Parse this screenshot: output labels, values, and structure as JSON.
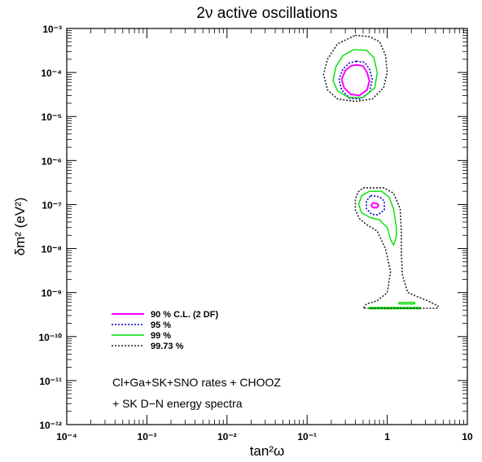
{
  "chart_data": {
    "type": "contour",
    "title": "2ν active oscillations",
    "xlabel": "tan²ω",
    "ylabel": "δm² (eV²)",
    "x_scale": "log",
    "y_scale": "log",
    "xlim": [
      0.0001,
      10
    ],
    "ylim": [
      1e-12,
      0.001
    ],
    "x_ticks": [
      {
        "value": 0.0001,
        "label": "10⁻⁴"
      },
      {
        "value": 0.001,
        "label": "10⁻³"
      },
      {
        "value": 0.01,
        "label": "10⁻²"
      },
      {
        "value": 0.1,
        "label": "10⁻¹"
      },
      {
        "value": 1,
        "label": "1"
      },
      {
        "value": 10,
        "label": "10"
      }
    ],
    "y_ticks": [
      {
        "value": 1e-12,
        "label": "10⁻¹²"
      },
      {
        "value": 1e-11,
        "label": "10⁻¹¹"
      },
      {
        "value": 1e-10,
        "label": "10⁻¹⁰"
      },
      {
        "value": 1e-09,
        "label": "10⁻⁹"
      },
      {
        "value": 1e-08,
        "label": "10⁻⁸"
      },
      {
        "value": 1e-07,
        "label": "10⁻⁷"
      },
      {
        "value": 1e-06,
        "label": "10⁻⁶"
      },
      {
        "value": 1e-05,
        "label": "10⁻⁵"
      },
      {
        "value": 0.0001,
        "label": "10⁻⁴"
      },
      {
        "value": 0.001,
        "label": "10⁻³"
      }
    ],
    "legend_position": "lower-left",
    "series": [
      {
        "name": "90 % C.L. (2 DF)",
        "color": "#ff00ff",
        "dash": "solid",
        "contours": [
          [
            [
              0.41,
              0.00015
            ],
            [
              0.5,
              0.00014
            ],
            [
              0.56,
              0.0001
            ],
            [
              0.6,
              6.5e-05
            ],
            [
              0.56,
              4e-05
            ],
            [
              0.45,
              3e-05
            ],
            [
              0.35,
              3.2e-05
            ],
            [
              0.29,
              4.5e-05
            ],
            [
              0.27,
              7e-05
            ],
            [
              0.3,
              0.00011
            ],
            [
              0.35,
              0.00014
            ]
          ],
          [
            [
              0.66,
              1.08e-07
            ],
            [
              0.75,
              1.05e-07
            ],
            [
              0.78,
              9.5e-08
            ],
            [
              0.74,
              8.5e-08
            ],
            [
              0.66,
              8.5e-08
            ],
            [
              0.63,
              9.5e-08
            ]
          ]
        ]
      },
      {
        "name": "95 %",
        "color": "#0000cc",
        "dash": "dotted",
        "contours": [
          [
            [
              0.41,
              0.00018
            ],
            [
              0.52,
              0.00017
            ],
            [
              0.6,
              0.00012
            ],
            [
              0.65,
              7e-05
            ],
            [
              0.6,
              3.5e-05
            ],
            [
              0.46,
              2.5e-05
            ],
            [
              0.34,
              2.6e-05
            ],
            [
              0.27,
              4e-05
            ],
            [
              0.25,
              7e-05
            ],
            [
              0.28,
              0.00012
            ],
            [
              0.34,
              0.000165
            ]
          ],
          [
            [
              0.62,
              1.6e-07
            ],
            [
              0.8,
              1.5e-07
            ],
            [
              0.92,
              1.2e-07
            ],
            [
              0.92,
              7.5e-08
            ],
            [
              0.76,
              5.8e-08
            ],
            [
              0.64,
              6e-08
            ],
            [
              0.55,
              8e-08
            ],
            [
              0.55,
              1.2e-07
            ]
          ]
        ]
      },
      {
        "name": "99 %",
        "color": "#00dd00",
        "dash": "solid",
        "contours": [
          [
            [
              0.38,
              0.00033
            ],
            [
              0.55,
              0.00032
            ],
            [
              0.68,
              0.00022
            ],
            [
              0.75,
              0.0001
            ],
            [
              0.7,
              4.5e-05
            ],
            [
              0.5,
              2.7e-05
            ],
            [
              0.33,
              2.7e-05
            ],
            [
              0.24,
              3.8e-05
            ],
            [
              0.21,
              6.5e-05
            ],
            [
              0.23,
              0.00014
            ],
            [
              0.28,
              0.00024
            ]
          ],
          [
            [
              0.6,
              2e-07
            ],
            [
              0.85,
              2e-07
            ],
            [
              1.05,
              1.5e-07
            ],
            [
              1.2,
              8e-08
            ],
            [
              1.3,
              3e-08
            ],
            [
              1.3,
              1.8e-08
            ],
            [
              1.2,
              1.2e-08
            ],
            [
              1.1,
              1.6e-08
            ],
            [
              1.0,
              3e-08
            ],
            [
              0.8,
              4.5e-08
            ],
            [
              0.62,
              5e-08
            ],
            [
              0.48,
              6.5e-08
            ],
            [
              0.44,
              1e-07
            ],
            [
              0.48,
              1.6e-07
            ]
          ],
          [
            [
              1.4,
              6e-10
            ],
            [
              2.2,
              6e-10
            ],
            [
              2.2,
              5.5e-10
            ],
            [
              1.4,
              5.5e-10
            ]
          ],
          [
            [
              0.6,
              4.6e-10
            ],
            [
              2.6,
              4.6e-10
            ],
            [
              2.6,
              4.3e-10
            ],
            [
              0.6,
              4.3e-10
            ]
          ]
        ]
      },
      {
        "name": "99.73 %",
        "color": "#222222",
        "dash": "dotted",
        "contours": [
          [
            [
              0.4,
              0.0007
            ],
            [
              0.6,
              0.00065
            ],
            [
              0.8,
              0.0005
            ],
            [
              0.95,
              0.00025
            ],
            [
              1.0,
              0.0001
            ],
            [
              0.9,
              4.5e-05
            ],
            [
              0.65,
              2.5e-05
            ],
            [
              0.4,
              2.2e-05
            ],
            [
              0.24,
              2.5e-05
            ],
            [
              0.18,
              4e-05
            ],
            [
              0.16,
              9e-05
            ],
            [
              0.18,
              0.0002
            ],
            [
              0.24,
              0.00045
            ]
          ],
          [
            [
              0.5,
              2.4e-07
            ],
            [
              0.9,
              2.4e-07
            ],
            [
              1.2,
              1.8e-07
            ],
            [
              1.45,
              8e-08
            ],
            [
              1.5,
              2.5e-08
            ],
            [
              1.5,
              8e-09
            ],
            [
              1.55,
              2.5e-09
            ],
            [
              1.8,
              1e-09
            ],
            [
              2.4,
              8e-10
            ],
            [
              3.2,
              6.5e-10
            ],
            [
              4.3,
              5e-10
            ],
            [
              4.3,
              4.4e-10
            ],
            [
              0.5,
              4.4e-10
            ],
            [
              0.55,
              5.5e-10
            ],
            [
              0.75,
              6.5e-10
            ],
            [
              1.0,
              1e-09
            ],
            [
              1.1,
              3e-09
            ],
            [
              0.95,
              1e-08
            ],
            [
              0.75,
              2.5e-08
            ],
            [
              0.55,
              3.5e-08
            ],
            [
              0.45,
              4.8e-08
            ],
            [
              0.4,
              7.5e-08
            ],
            [
              0.4,
              1.3e-07
            ],
            [
              0.43,
              1.9e-07
            ]
          ]
        ]
      }
    ],
    "annotations": [
      "Cl+Ga+SK+SNO rates + CHOOZ",
      "+  SK  D−N  energy  spectra"
    ]
  }
}
